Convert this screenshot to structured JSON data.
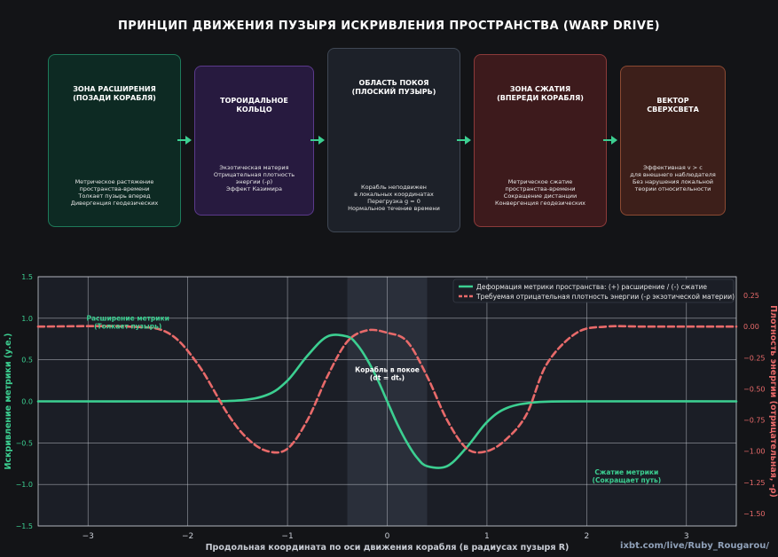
{
  "title": "ПРИНЦИП ДВИЖЕНИЯ ПУЗЫРЯ ИСКРИВЛЕНИЯ ПРОСТРАНСТВА (WARP DRIVE)",
  "boxes": [
    {
      "title": "ЗОНА РАСШИРЕНИЯ\n(ПОЗАДИ КОРАБЛЯ)",
      "body": "Метрическое растяжение\nпространства-времени\nТолкает пузырь вперед\nДивергенция геодезических",
      "fill": "#0d2a23",
      "border": "#1e7a5a"
    },
    {
      "title": "ТОРОИДАЛЬНОЕ\nКОЛЬЦО",
      "body": "Экзотическая материя\nОтрицательная плотность\nэнергии (-ρ)\nЭффект Казимира",
      "fill": "#271a3f",
      "border": "#5b3a8c"
    },
    {
      "title": "ОБЛАСТЬ ПОКОЯ\n(ПЛОСКИЙ ПУЗЫРЬ)",
      "body": "Корабль неподвижен\nв локальных координатах\nПерегрузка g = 0\nНормальное течение времени",
      "fill": "#1d2129",
      "border": "#3f4754"
    },
    {
      "title": "ЗОНА СЖАТИЯ\n(ВПЕРЕДИ КОРАБЛЯ)",
      "body": "Метрическое сжатие\nпространства-времени\nСокращение дистанции\nКонвергенция геодезических",
      "fill": "#3d1a1c",
      "border": "#8c3a3a"
    },
    {
      "title": "ВЕКТОР\nСВЕРХСВЕТА",
      "body": "Эффективная v > c\nдля внешнего наблюдателя\nБез нарушения локальной\nтеории относительности",
      "fill": "#3d1f1a",
      "border": "#8c4a32"
    }
  ],
  "chart_data": {
    "type": "line",
    "xlabel": "Продольная координата по оси движения корабля (в радиусах пузыря R)",
    "ylabel": "Искривление метрики (у.е.)",
    "ylabel_right": "Плотность энергии (отрицательная, -ρ)",
    "xlim": [
      -3.5,
      3.5
    ],
    "ylim": [
      -1.5,
      1.5
    ],
    "ylim_right": [
      -1.6,
      0.4
    ],
    "xticks": [
      -3,
      -2,
      -1,
      0,
      1,
      2,
      3
    ],
    "yticks": [
      -1.5,
      -1.0,
      -0.5,
      0.0,
      0.5,
      1.0,
      1.5
    ],
    "yticks_right": [
      -1.5,
      -1.25,
      -1.0,
      -0.75,
      -0.5,
      -0.25,
      0.0,
      0.25
    ],
    "grid": true,
    "legend_position": "top-right",
    "shaded_region": {
      "x_range": [
        -0.4,
        0.4
      ],
      "label": "Корабль в покое\n(dt = dtₛ)"
    },
    "annotations": [
      {
        "text": "Расширение метрики\n(Толкает пузырь)",
        "x": -2.6,
        "y": 0.97,
        "color": "#3ccf91"
      },
      {
        "text": "Сжатие метрики\n(Сокращает путь)",
        "x": 2.4,
        "y": -0.88,
        "color": "#3ccf91"
      }
    ],
    "series": [
      {
        "name": "Деформация метрики пространства: (+) расширение / (-) сжатие",
        "axis": "left",
        "color": "#3ccf91",
        "style": "solid",
        "x": [
          -3.5,
          -2.0,
          -1.5,
          -1.2,
          -1.0,
          -0.8,
          -0.6,
          -0.4,
          -0.3,
          -0.2,
          -0.1,
          0.0,
          0.1,
          0.2,
          0.3,
          0.4,
          0.6,
          0.8,
          1.0,
          1.2,
          1.5,
          2.0,
          3.5
        ],
        "y": [
          0.0,
          0.0,
          0.01,
          0.08,
          0.25,
          0.55,
          0.78,
          0.78,
          0.68,
          0.5,
          0.27,
          0.0,
          -0.27,
          -0.5,
          -0.68,
          -0.78,
          -0.78,
          -0.55,
          -0.25,
          -0.08,
          -0.01,
          0.0,
          0.0
        ]
      },
      {
        "name": "Требуемая отрицательная плотность энергии (-ρ экзотической материи)",
        "axis": "right",
        "color": "#e86a6a",
        "style": "dashed",
        "x": [
          -3.5,
          -2.6,
          -2.2,
          -1.9,
          -1.6,
          -1.4,
          -1.2,
          -1.0,
          -0.8,
          -0.6,
          -0.4,
          -0.2,
          0.0,
          0.2,
          0.4,
          0.6,
          0.8,
          1.0,
          1.2,
          1.4,
          1.6,
          1.9,
          2.2,
          2.6,
          3.5
        ],
        "y": [
          0.0,
          0.0,
          -0.05,
          -0.3,
          -0.7,
          -0.9,
          -1.0,
          -0.98,
          -0.75,
          -0.4,
          -0.12,
          -0.03,
          -0.05,
          -0.12,
          -0.4,
          -0.75,
          -0.98,
          -1.0,
          -0.9,
          -0.7,
          -0.3,
          -0.05,
          0.0,
          0.0,
          0.0
        ]
      }
    ]
  },
  "credit": "ixbt.com/live/Ruby_Rougarou/"
}
